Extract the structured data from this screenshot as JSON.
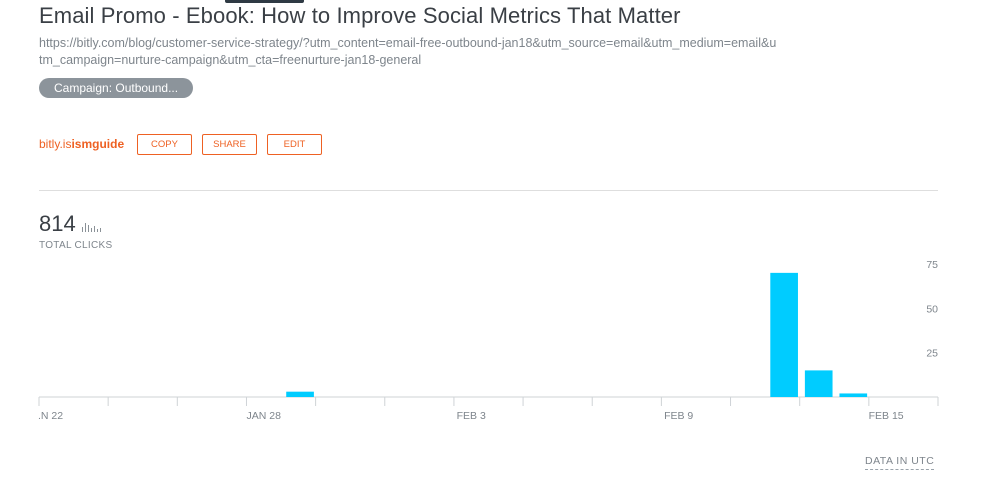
{
  "link": {
    "title": "Email Promo - Ebook: How to Improve Social Metrics That Matter",
    "long_url": "https://bitly.com/blog/customer-service-strategy/?utm_content=email-free-outbound-jan18&utm_source=email&utm_medium=email&utm_campaign=nurture-campaign&utm_cta=freenurture-jan18-general",
    "tag": "Campaign: Outbound...",
    "short_domain": "bitly.is",
    "short_path": "ismguide",
    "accent_color": "#ee6123"
  },
  "actions": {
    "copy": "COPY",
    "share": "SHARE",
    "edit": "EDIT"
  },
  "stats": {
    "total_clicks": "814",
    "total_clicks_label": "TOTAL CLICKS",
    "icon": "bar-chart-icon"
  },
  "chart_data": {
    "type": "bar",
    "categories": [
      "Jan 22",
      "Jan 23",
      "Jan 24",
      "Jan 25",
      "Jan 26",
      "Jan 27",
      "Jan 28",
      "Jan 29",
      "Jan 30",
      "Jan 31",
      "Feb 1",
      "Feb 2",
      "Feb 3",
      "Feb 4",
      "Feb 5",
      "Feb 6",
      "Feb 7",
      "Feb 8",
      "Feb 9",
      "Feb 10",
      "Feb 11",
      "Feb 12",
      "Feb 13",
      "Feb 14",
      "Feb 15",
      "Feb 16"
    ],
    "values": [
      0,
      0,
      0,
      0,
      0,
      0,
      0,
      3,
      0,
      0,
      0,
      0,
      0,
      0,
      0,
      0,
      0,
      0,
      0,
      0,
      0,
      70,
      15,
      2,
      0,
      0
    ],
    "x_tick_labels": [
      ".N 22",
      "JAN 28",
      "FEB 3",
      "FEB 9",
      "FEB 15"
    ],
    "y_ticks": [
      25,
      50,
      75
    ],
    "ylim": [
      0,
      75
    ],
    "bar_color": "#00ccff",
    "grid": false
  },
  "footer": {
    "timezone_note": "DATA IN UTC"
  }
}
